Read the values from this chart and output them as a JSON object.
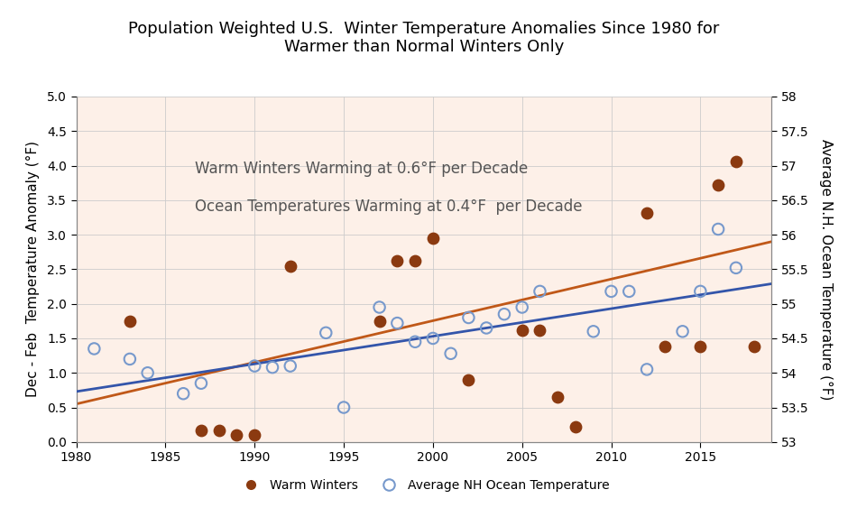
{
  "title": "Population Weighted U.S.  Winter Temperature Anomalies Since 1980 for\nWarmer than Normal Winters Only",
  "ylabel_left": "Dec - Feb  Temperature Anomaly (°F)",
  "ylabel_right": "Average N.H. Ocean Temperature (°F)",
  "annotation_line1": "Warm Winters Warming at 0.6°F per Decade",
  "annotation_line2": "Ocean Temperatures Warming at 0.4°F  per Decade",
  "xlim": [
    1980,
    2019
  ],
  "ylim_left": [
    0,
    5
  ],
  "ylim_right": [
    53,
    58
  ],
  "xticks": [
    1980,
    1985,
    1990,
    1995,
    2000,
    2005,
    2010,
    2015
  ],
  "yticks_left": [
    0,
    0.5,
    1.0,
    1.5,
    2.0,
    2.5,
    3.0,
    3.5,
    4.0,
    4.5,
    5.0
  ],
  "yticks_right": [
    53,
    53.5,
    54,
    54.5,
    55,
    55.5,
    56,
    56.5,
    57,
    57.5,
    58
  ],
  "background_color": "#fdf0e8",
  "fig_background": "#ffffff",
  "warm_winters_color": "#8B3A10",
  "ocean_face_color": "none",
  "ocean_edge_color": "#7799CC",
  "warm_trend_color": "#C05818",
  "ocean_trend_color": "#3355AA",
  "warm_winters_x": [
    1983,
    1987,
    1988,
    1989,
    1990,
    1992,
    1997,
    1998,
    1999,
    2000,
    2002,
    2005,
    2006,
    2007,
    2008,
    2012,
    2013,
    2015,
    2016,
    2017,
    2018
  ],
  "warm_winters_y": [
    1.75,
    0.17,
    0.17,
    0.1,
    0.1,
    2.55,
    1.75,
    2.62,
    2.62,
    2.95,
    0.9,
    1.62,
    1.62,
    0.65,
    0.22,
    3.32,
    1.38,
    1.38,
    3.72,
    4.06,
    1.38
  ],
  "ocean_temp_x": [
    1981,
    1983,
    1984,
    1986,
    1987,
    1990,
    1991,
    1992,
    1994,
    1995,
    1997,
    1998,
    1999,
    2000,
    2001,
    2002,
    2003,
    2004,
    2005,
    2006,
    2009,
    2010,
    2011,
    2012,
    2014,
    2015,
    2016,
    2017
  ],
  "ocean_temp_y": [
    54.35,
    54.2,
    54.0,
    53.7,
    53.85,
    54.1,
    54.08,
    54.1,
    54.58,
    53.5,
    54.95,
    54.72,
    54.45,
    54.5,
    54.28,
    54.8,
    54.65,
    54.85,
    54.95,
    55.18,
    54.6,
    55.18,
    55.18,
    54.05,
    54.6,
    55.18,
    56.08,
    55.52
  ],
  "warm_trend_x": [
    1980,
    2019
  ],
  "warm_trend_y": [
    0.55,
    2.9
  ],
  "ocean_trend_x": [
    1980,
    2019
  ],
  "ocean_trend_y": [
    53.73,
    55.29
  ],
  "legend_warm": "Warm Winters",
  "legend_ocean": "Average NH Ocean Temperature",
  "marker_size": 80,
  "trend_linewidth": 2.0,
  "annotation_fontsize": 12,
  "axis_label_fontsize": 11,
  "tick_fontsize": 10,
  "title_fontsize": 13
}
